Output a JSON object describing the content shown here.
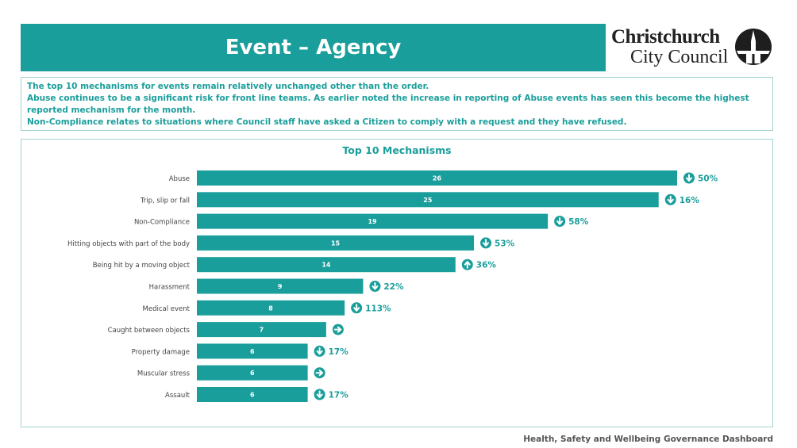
{
  "header": {
    "title": "Event – Agency"
  },
  "logo": {
    "line1": "Christchurch",
    "line2": "City Council"
  },
  "info": {
    "lines": [
      "The top 10 mechanisms for events remain relatively unchanged other than the order.",
      "Abuse continues to be a significant risk for front line teams. As earlier noted the increase in reporting of Abuse events has seen this become the highest reported mechanism for the month.",
      "Non-Compliance relates to situations where Council staff have asked a Citizen to comply with a request and they have refused."
    ]
  },
  "footer": {
    "text": "Health, Safety and Wellbeing Governance Dashboard"
  },
  "colors": {
    "accent": "#1a9e9b",
    "border": "#9fd3d1",
    "label": "#444444"
  },
  "chart_data": {
    "type": "bar",
    "orientation": "horizontal",
    "title": "Top 10 Mechanisms",
    "xlim": [
      0,
      26
    ],
    "categories": [
      "Abuse",
      "Trip, slip or fall",
      "Non-Compliance",
      "Hitting objects with part of the body",
      "Being hit by a moving object",
      "Harassment",
      "Medical event",
      "Caught between objects",
      "Property damage",
      "Muscular stress",
      "Assault"
    ],
    "values": [
      26,
      25,
      19,
      15,
      14,
      9,
      8,
      7,
      6,
      6,
      6
    ],
    "trend": [
      "down",
      "down",
      "down",
      "down",
      "up",
      "down",
      "down",
      "right",
      "down",
      "right",
      "down"
    ],
    "change": [
      "50%",
      "16%",
      "58%",
      "53%",
      "36%",
      "22%",
      "113%",
      "",
      "17%",
      "",
      "17%"
    ]
  }
}
